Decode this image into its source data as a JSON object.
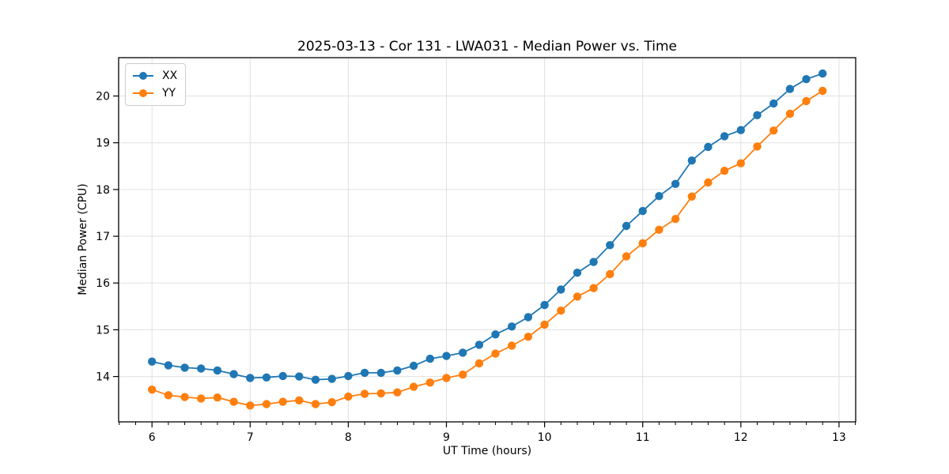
{
  "chart_data": {
    "type": "line",
    "title": "2025-03-13 - Cor 131 - LWA031 - Median Power vs. Time",
    "xlabel": "UT Time (hours)",
    "ylabel": "Median Power (CPU)",
    "xlim": [
      5.66,
      13.17
    ],
    "ylim": [
      13.03,
      20.82
    ],
    "xticks": [
      6,
      7,
      8,
      9,
      10,
      11,
      12,
      13
    ],
    "yticks": [
      14,
      15,
      16,
      17,
      18,
      19,
      20
    ],
    "x_minor_step": 0.16667,
    "grid": true,
    "legend_position": "upper left",
    "x": [
      6.0,
      6.1667,
      6.3333,
      6.5,
      6.6667,
      6.8333,
      7.0,
      7.1667,
      7.3333,
      7.5,
      7.6667,
      7.8333,
      8.0,
      8.1667,
      8.3333,
      8.5,
      8.6667,
      8.8333,
      9.0,
      9.1667,
      9.3333,
      9.5,
      9.6667,
      9.8333,
      10.0,
      10.1667,
      10.3333,
      10.5,
      10.6667,
      10.8333,
      11.0,
      11.1667,
      11.3333,
      11.5,
      11.6667,
      11.8333,
      12.0,
      12.1667,
      12.3333,
      12.5,
      12.6667,
      12.8333
    ],
    "series": [
      {
        "name": "XX",
        "color": "#1f77b4",
        "values": [
          14.32,
          14.24,
          14.19,
          14.17,
          14.13,
          14.05,
          13.97,
          13.98,
          14.01,
          14.0,
          13.93,
          13.95,
          14.01,
          14.08,
          14.08,
          14.13,
          14.23,
          14.38,
          14.44,
          14.51,
          14.68,
          14.9,
          15.07,
          15.27,
          15.53,
          15.86,
          16.22,
          16.45,
          16.81,
          17.22,
          17.54,
          17.86,
          18.12,
          18.62,
          18.91,
          19.14,
          19.27,
          19.59,
          19.84,
          20.15,
          20.36,
          20.48
        ]
      },
      {
        "name": "YY",
        "color": "#ff7f0e",
        "values": [
          13.72,
          13.6,
          13.56,
          13.53,
          13.55,
          13.46,
          13.38,
          13.41,
          13.46,
          13.49,
          13.41,
          13.45,
          13.57,
          13.63,
          13.64,
          13.66,
          13.78,
          13.87,
          13.97,
          14.04,
          14.28,
          14.49,
          14.66,
          14.85,
          15.11,
          15.41,
          15.71,
          15.89,
          16.19,
          16.57,
          16.85,
          17.14,
          17.37,
          17.85,
          18.15,
          18.4,
          18.56,
          18.92,
          19.26,
          19.62,
          19.89,
          20.11
        ]
      }
    ]
  },
  "colors": {
    "grid": "#e0e0e0",
    "spine": "#000000",
    "text": "#000000",
    "background": "#ffffff"
  }
}
